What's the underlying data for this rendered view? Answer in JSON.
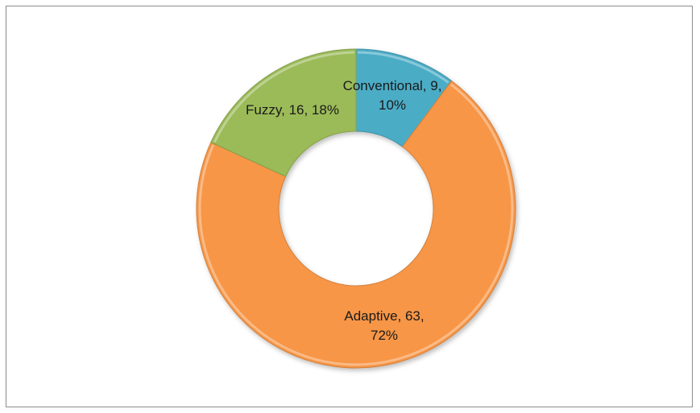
{
  "chart_data": {
    "type": "pie",
    "variant": "doughnut",
    "title": "",
    "slices": [
      {
        "name": "Conventional",
        "value": 9,
        "percent": 10,
        "color": "#4bacc6",
        "label_lines": [
          "Conventional, 9,",
          "10%"
        ]
      },
      {
        "name": "Adaptive",
        "value": 63,
        "percent": 72,
        "color": "#f79646",
        "label_lines": [
          "Adaptive, 63,",
          "72%"
        ]
      },
      {
        "name": "Fuzzy",
        "value": 16,
        "percent": 18,
        "color": "#9bbb59",
        "label_lines": [
          "Fuzzy, 16, 18%"
        ]
      }
    ],
    "legend": "none"
  }
}
